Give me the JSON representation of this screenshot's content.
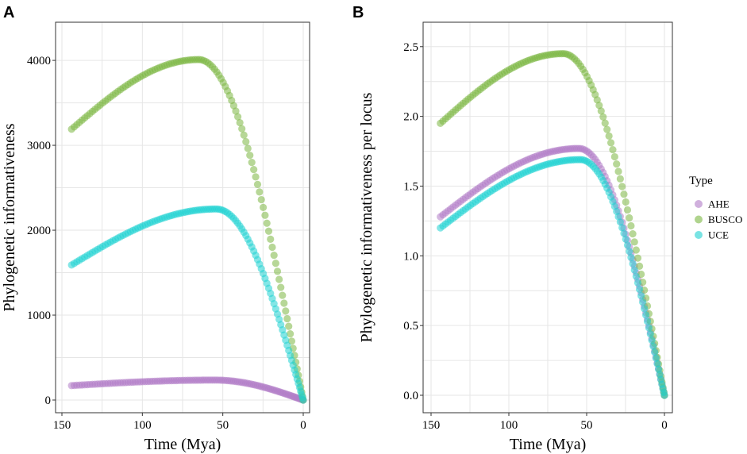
{
  "chart_data": [
    {
      "panel": "A",
      "type": "scatter",
      "xlabel": "Time (Mya)",
      "ylabel": "Phylogenetic informativeness",
      "xlim": [
        150,
        0
      ],
      "ylim": [
        0,
        4300
      ],
      "x_ticks": [
        150,
        100,
        50,
        0
      ],
      "y_ticks": [
        0,
        1000,
        2000,
        3000,
        4000
      ],
      "grid": true,
      "series": [
        {
          "name": "AHE",
          "color": "#b07cc6",
          "start_x": 144,
          "start_y": 170,
          "peak_x": 55,
          "peak_y": 235,
          "end_y": 0
        },
        {
          "name": "BUSCO",
          "color": "#7cb742",
          "start_x": 144,
          "start_y": 3190,
          "peak_x": 65,
          "peak_y": 4010,
          "end_y": 0
        },
        {
          "name": "UCE",
          "color": "#1fd1d1",
          "start_x": 144,
          "start_y": 1590,
          "peak_x": 54,
          "peak_y": 2250,
          "end_y": 0
        }
      ]
    },
    {
      "panel": "B",
      "type": "scatter",
      "xlabel": "Time (Mya)",
      "ylabel": "Phylogenetic informativeness per locus",
      "xlim": [
        150,
        0
      ],
      "ylim": [
        0,
        2.55
      ],
      "x_ticks": [
        150,
        100,
        50,
        0
      ],
      "y_ticks": [
        0.0,
        0.5,
        1.0,
        1.5,
        2.0,
        2.5
      ],
      "y_tick_labels": [
        "0.0",
        "0.5",
        "1.0",
        "1.5",
        "2.0",
        "2.5"
      ],
      "grid": true,
      "series": [
        {
          "name": "AHE",
          "color": "#b07cc6",
          "start_x": 144,
          "start_y": 1.28,
          "peak_x": 55,
          "peak_y": 1.77,
          "end_y": 0
        },
        {
          "name": "BUSCO",
          "color": "#7cb742",
          "start_x": 144,
          "start_y": 1.95,
          "peak_x": 65,
          "peak_y": 2.45,
          "end_y": 0
        },
        {
          "name": "UCE",
          "color": "#1fd1d1",
          "start_x": 144,
          "start_y": 1.2,
          "peak_x": 54,
          "peak_y": 1.69,
          "end_y": 0
        }
      ]
    }
  ],
  "legend": {
    "title": "Type",
    "entries": [
      {
        "label": "AHE",
        "color": "#b07cc6"
      },
      {
        "label": "BUSCO",
        "color": "#7cb742"
      },
      {
        "label": "UCE",
        "color": "#1fd1d1"
      }
    ]
  }
}
